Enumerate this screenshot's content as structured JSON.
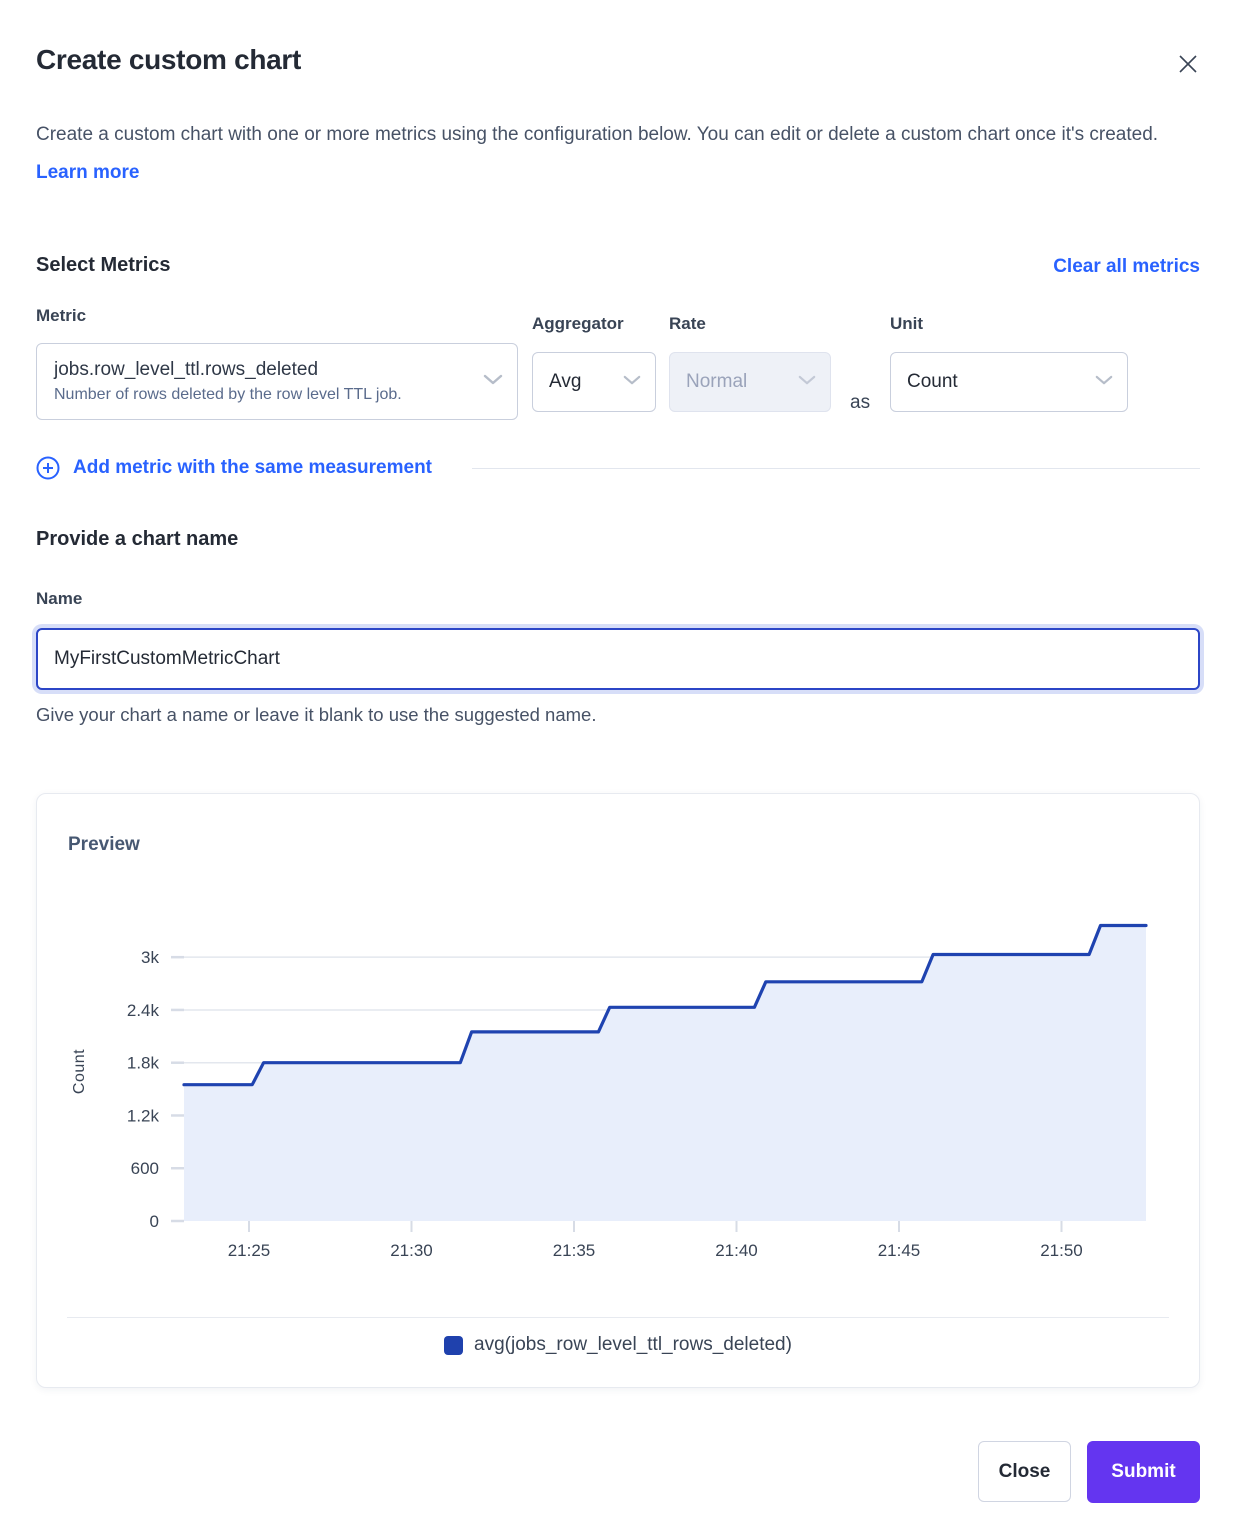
{
  "dialog": {
    "title": "Create custom chart",
    "description": "Create a custom chart with one or more metrics using the configuration below. You can edit or delete a custom chart once it's created.",
    "learn_more_label": "Learn more"
  },
  "metrics_section": {
    "heading": "Select Metrics",
    "clear_all_label": "Clear all metrics",
    "metric_label": "Metric",
    "aggregator_label": "Aggregator",
    "rate_label": "Rate",
    "unit_label": "Unit",
    "as_label": "as",
    "metric_value": "jobs.row_level_ttl.rows_deleted",
    "metric_description": "Number of rows deleted by the row level TTL job.",
    "aggregator_value": "Avg",
    "rate_value": "Normal",
    "rate_disabled": true,
    "unit_value": "Count",
    "add_metric_label": "Add metric with the same measurement"
  },
  "name_section": {
    "heading": "Provide a chart name",
    "name_label": "Name",
    "name_value": "MyFirstCustomMetricChart",
    "helper_text": "Give your chart a name or leave it blank to use the suggested name."
  },
  "preview": {
    "heading": "Preview",
    "legend_label": "avg(jobs_row_level_ttl_rows_deleted)",
    "legend_color": "#1f41ad"
  },
  "footer": {
    "close_label": "Close",
    "submit_label": "Submit"
  },
  "colors": {
    "accent_blue": "#2962ff",
    "line_blue": "#1f43b0",
    "area_fill": "#e8eefb",
    "submit_purple": "#6435f0",
    "gridline": "#e3e7ee",
    "tick": "#d7dce6",
    "axis_text": "#394455"
  },
  "chart_data": {
    "type": "area",
    "subtype": "step-line with area fill",
    "title": "Preview",
    "xlabel": "",
    "ylabel": "Count",
    "x_format": "HH:MM, x stored as minutes since midnight",
    "x_range_minutes": [
      1283.0,
      1312.6
    ],
    "ylim": [
      0,
      3400
    ],
    "grid": true,
    "legend_position": "bottom",
    "x_ticks": [
      {
        "t": 1285,
        "label": "21:25"
      },
      {
        "t": 1290,
        "label": "21:30"
      },
      {
        "t": 1295,
        "label": "21:35"
      },
      {
        "t": 1300,
        "label": "21:40"
      },
      {
        "t": 1305,
        "label": "21:45"
      },
      {
        "t": 1310,
        "label": "21:50"
      }
    ],
    "y_ticks": [
      {
        "v": 0,
        "label": "0"
      },
      {
        "v": 600,
        "label": "600"
      },
      {
        "v": 1200,
        "label": "1.2k"
      },
      {
        "v": 1800,
        "label": "1.8k"
      },
      {
        "v": 2400,
        "label": "2.4k"
      },
      {
        "v": 3000,
        "label": "3k"
      }
    ],
    "series": [
      {
        "name": "avg(jobs_row_level_ttl_rows_deleted)",
        "color": "#1f43b0",
        "fill": "#e8eefb",
        "points": [
          [
            1283.0,
            1550
          ],
          [
            1285.1,
            1550
          ],
          [
            1285.45,
            1800
          ],
          [
            1291.5,
            1800
          ],
          [
            1291.85,
            2150
          ],
          [
            1295.75,
            2150
          ],
          [
            1296.1,
            2430
          ],
          [
            1300.55,
            2430
          ],
          [
            1300.9,
            2720
          ],
          [
            1305.7,
            2720
          ],
          [
            1306.05,
            3030
          ],
          [
            1310.85,
            3030
          ],
          [
            1311.2,
            3360
          ],
          [
            1312.6,
            3360
          ]
        ]
      }
    ]
  }
}
